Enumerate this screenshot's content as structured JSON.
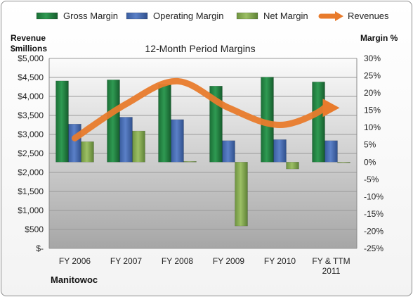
{
  "chart_data": {
    "type": "bar",
    "title": "12-Month Period Margins",
    "company": "Manitowoc",
    "y_left_label_line1": "Revenue",
    "y_left_label_line2": "$millions",
    "y_right_label": "Margin %",
    "categories": [
      "FY 2006",
      "FY 2007",
      "FY 2008",
      "FY 2009",
      "FY 2010",
      "FY & TTM 2011"
    ],
    "category_lines": [
      [
        "FY 2006"
      ],
      [
        "FY 2007"
      ],
      [
        "FY 2008"
      ],
      [
        "FY 2009"
      ],
      [
        "FY 2010"
      ],
      [
        "FY & TTM",
        "2011"
      ]
    ],
    "left_axis": {
      "min": 0,
      "max": 5000,
      "step": 500,
      "tick_labels": [
        "$-",
        "$500",
        "$1,000",
        "$1,500",
        "$2,000",
        "$2,500",
        "$3,000",
        "$3,500",
        "$4,000",
        "$4,500",
        "$5,000"
      ]
    },
    "right_axis": {
      "min": -25,
      "max": 30,
      "step": 5,
      "tick_labels": [
        "-25%",
        "-20%",
        "-15%",
        "-10%",
        "-5%",
        "0%",
        "5%",
        "10%",
        "15%",
        "20%",
        "25%",
        "30%"
      ]
    },
    "legend_position": "top",
    "series": [
      {
        "name": "Gross Margin",
        "kind": "bar",
        "axis": "right",
        "color": "#1e7a3c",
        "values": [
          23.5,
          23.8,
          22.5,
          22.0,
          24.6,
          23.2
        ]
      },
      {
        "name": "Operating Margin",
        "kind": "bar",
        "axis": "right",
        "color": "#3f64ad",
        "values": [
          11.0,
          13.0,
          12.3,
          6.2,
          6.5,
          6.2
        ]
      },
      {
        "name": "Net Margin",
        "kind": "bar",
        "axis": "right",
        "color": "#7fa346",
        "values": [
          5.9,
          9.0,
          0.2,
          -18.5,
          -2.0,
          0.0
        ]
      },
      {
        "name": "Revenues",
        "kind": "line",
        "axis": "left",
        "color": "#e87b2c",
        "values": [
          2900,
          3800,
          4400,
          3700,
          3250,
          3700
        ]
      }
    ]
  }
}
